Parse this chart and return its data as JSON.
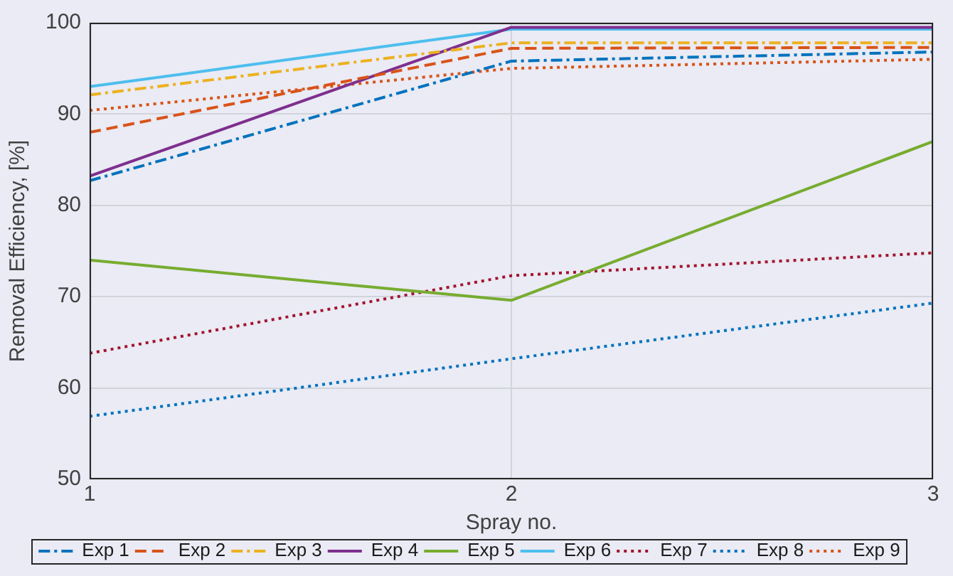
{
  "chart_data": {
    "type": "line",
    "xlabel": "Spray no.",
    "ylabel": "Removal Efficiency, [%]",
    "x": [
      1,
      2,
      3
    ],
    "xlim": [
      1,
      3
    ],
    "xticks": [
      1,
      2,
      3
    ],
    "ylim": [
      50,
      100
    ],
    "yticks": [
      50,
      60,
      70,
      80,
      90,
      100
    ],
    "grid": true,
    "legend": "bottom",
    "series": [
      {
        "name": "Exp 1",
        "color": "#0072bd",
        "line_style": "dashdot",
        "values": [
          82.7,
          95.8,
          96.8
        ]
      },
      {
        "name": "Exp 2",
        "color": "#d95319",
        "line_style": "dashed",
        "values": [
          88.0,
          97.2,
          97.3
        ]
      },
      {
        "name": "Exp 3",
        "color": "#edb120",
        "line_style": "dashdot",
        "values": [
          92.1,
          97.8,
          97.8
        ]
      },
      {
        "name": "Exp 4",
        "color": "#7e2f8e",
        "line_style": "solid",
        "values": [
          83.2,
          99.5,
          99.5
        ]
      },
      {
        "name": "Exp 5",
        "color": "#77ac30",
        "line_style": "solid",
        "values": [
          74.0,
          69.6,
          87.0
        ]
      },
      {
        "name": "Exp 6",
        "color": "#4dbeee",
        "line_style": "solid",
        "values": [
          93.0,
          99.3,
          99.3
        ]
      },
      {
        "name": "Exp 7",
        "color": "#a2142f",
        "line_style": "dotted",
        "values": [
          63.8,
          72.3,
          74.8
        ]
      },
      {
        "name": "Exp 8",
        "color": "#0072bd",
        "line_style": "dotted",
        "values": [
          56.9,
          63.2,
          69.3
        ]
      },
      {
        "name": "Exp 9",
        "color": "#d95319",
        "line_style": "dotted",
        "values": [
          90.4,
          95.0,
          96.0
        ]
      }
    ]
  }
}
